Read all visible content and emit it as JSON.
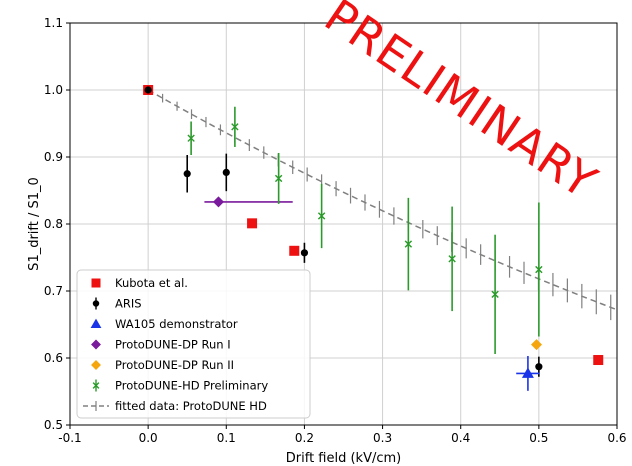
{
  "chart_data": {
    "type": "scatter",
    "title": "",
    "xlabel": "Drift field (kV/cm)",
    "ylabel": "S1_drift / S1_0",
    "xlim": [
      -0.1,
      0.6
    ],
    "ylim": [
      0.5,
      1.1
    ],
    "xticks": [
      "-0.1",
      "0.0",
      "0.1",
      "0.2",
      "0.3",
      "0.4",
      "0.5",
      "0.6"
    ],
    "yticks": [
      "0.5",
      "0.6",
      "0.7",
      "0.8",
      "0.9",
      "1.0",
      "1.1"
    ],
    "grid": true,
    "legend_position": "lower-left",
    "annotation": "PRELIMINARY",
    "series": [
      {
        "name": "Kubota et al.",
        "marker": "square",
        "color": "#ee1111",
        "points": [
          {
            "x": 0.0,
            "y": 1.0
          },
          {
            "x": 0.133,
            "y": 0.801
          },
          {
            "x": 0.187,
            "y": 0.76
          },
          {
            "x": 0.576,
            "y": 0.597
          }
        ]
      },
      {
        "name": "ARIS",
        "marker": "circle",
        "color": "#000000",
        "points": [
          {
            "x": 0.0,
            "y": 1.0,
            "yerr": 0.0
          },
          {
            "x": 0.05,
            "y": 0.875,
            "yerr": 0.028
          },
          {
            "x": 0.1,
            "y": 0.877,
            "yerr": 0.028
          },
          {
            "x": 0.2,
            "y": 0.757,
            "yerr": 0.015
          },
          {
            "x": 0.5,
            "y": 0.587,
            "yerr": 0.015
          }
        ]
      },
      {
        "name": "WA105 demonstrator",
        "marker": "triangle",
        "color": "#1a35e8",
        "points": [
          {
            "x": 0.486,
            "y": 0.577,
            "xerr": 0.015,
            "yerr": 0.026
          }
        ]
      },
      {
        "name": "ProtoDUNE-DP Run I",
        "marker": "diamond",
        "color": "#7a1a9c",
        "points": [
          {
            "x": 0.09,
            "y": 0.833,
            "xerr_low": 0.018,
            "xerr_high": 0.095
          }
        ]
      },
      {
        "name": "ProtoDUNE-DP Run II",
        "marker": "diamond",
        "color": "#f5a60c",
        "points": [
          {
            "x": 0.497,
            "y": 0.62
          }
        ]
      },
      {
        "name": "ProtoDUNE-HD Preliminary",
        "marker": "x",
        "color": "#2a9a2a",
        "points": [
          {
            "x": 0.055,
            "y": 0.928,
            "yerr": 0.025
          },
          {
            "x": 0.111,
            "y": 0.945,
            "yerr": 0.03
          },
          {
            "x": 0.167,
            "y": 0.868,
            "yerr": 0.038
          },
          {
            "x": 0.222,
            "y": 0.812,
            "yerr": 0.048
          },
          {
            "x": 0.333,
            "y": 0.77,
            "yerr": 0.069
          },
          {
            "x": 0.389,
            "y": 0.748,
            "yerr": 0.078
          },
          {
            "x": 0.444,
            "y": 0.695,
            "yerr": 0.089
          },
          {
            "x": 0.5,
            "y": 0.732,
            "yerr": 0.1
          }
        ]
      },
      {
        "name": "fitted data: ProtoDUNE HD",
        "marker": "dashed-line",
        "color": "#808080",
        "fit": {
          "form": "exp",
          "x0": 0.0,
          "y0": 1.0,
          "x1": 0.6,
          "y1": 0.672
        },
        "points": [
          {
            "x": 0.0,
            "y": 1.0
          },
          {
            "x": 0.1,
            "y": 0.936
          },
          {
            "x": 0.2,
            "y": 0.876
          },
          {
            "x": 0.3,
            "y": 0.82
          },
          {
            "x": 0.4,
            "y": 0.767
          },
          {
            "x": 0.5,
            "y": 0.718
          },
          {
            "x": 0.6,
            "y": 0.672
          }
        ]
      }
    ]
  }
}
